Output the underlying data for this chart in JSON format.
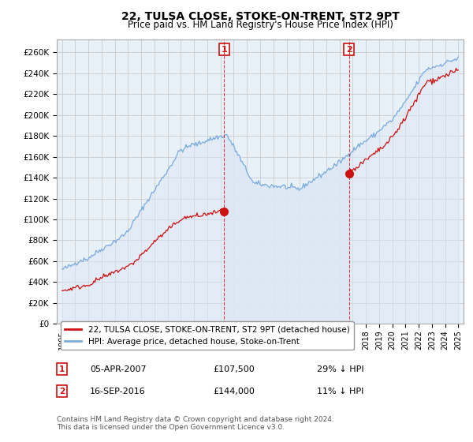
{
  "title": "22, TULSA CLOSE, STOKE-ON-TRENT, ST2 9PT",
  "subtitle": "Price paid vs. HM Land Registry's House Price Index (HPI)",
  "yticks": [
    0,
    20000,
    40000,
    60000,
    80000,
    100000,
    120000,
    140000,
    160000,
    180000,
    200000,
    220000,
    240000,
    260000
  ],
  "ylim": [
    0,
    272000
  ],
  "xlim_start": 1994.6,
  "xlim_end": 2025.4,
  "hpi_color": "#7aaadd",
  "hpi_fill_color": "#dde8f5",
  "price_color": "#cc1111",
  "grid_color": "#cccccc",
  "bg_color": "#e8f0f8",
  "sale1_x": 2007.27,
  "sale1_y": 107500,
  "sale2_x": 2016.72,
  "sale2_y": 144000,
  "sale1_label": "1",
  "sale2_label": "2",
  "legend_price_label": "22, TULSA CLOSE, STOKE-ON-TRENT, ST2 9PT (detached house)",
  "legend_hpi_label": "HPI: Average price, detached house, Stoke-on-Trent",
  "note1_label": "1",
  "note1_date": "05-APR-2007",
  "note1_price": "£107,500",
  "note1_hpi": "29% ↓ HPI",
  "note2_label": "2",
  "note2_date": "16-SEP-2016",
  "note2_price": "£144,000",
  "note2_hpi": "11% ↓ HPI",
  "footer": "Contains HM Land Registry data © Crown copyright and database right 2024.\nThis data is licensed under the Open Government Licence v3.0."
}
